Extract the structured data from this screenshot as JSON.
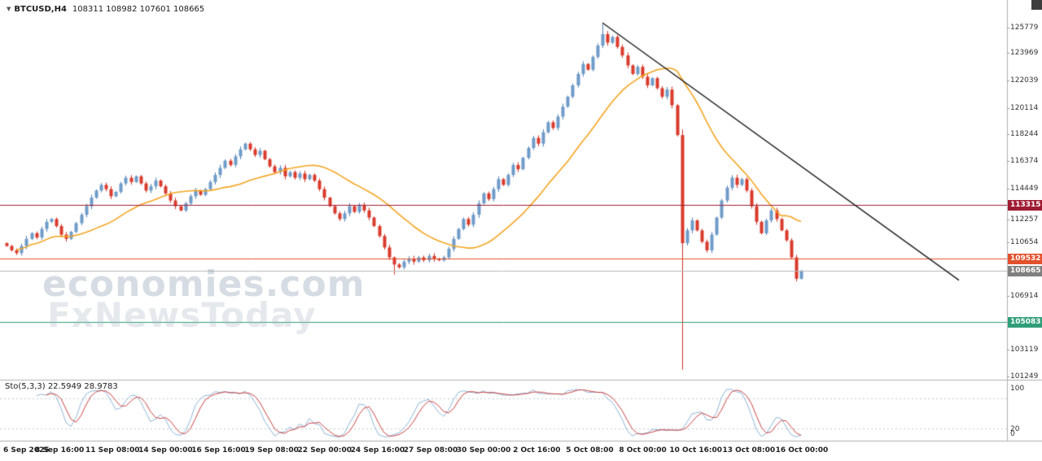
{
  "header": {
    "symbol": "BTCUSD,H4",
    "ohlc": "108311 108982 107601 108665"
  },
  "watermark": {
    "line1": "economies.com",
    "line2": "FxNewsToday"
  },
  "stochastic": {
    "label": "Sto(5,3,3) 22.5949 28.9783",
    "k_value": 22.5949,
    "d_value": 28.9783,
    "levels": [
      100,
      20,
      0
    ],
    "dotted_levels": [
      80,
      20
    ],
    "k_color": "#8fb6d8",
    "d_color": "#cc4444"
  },
  "price_axis": {
    "ticks": [
      125779,
      123969,
      122039,
      120114,
      118244,
      116374,
      114449,
      112257,
      110654,
      106914,
      103119,
      101249
    ],
    "badges": [
      {
        "price": 113315,
        "label": "113315",
        "color": "#9e1b32"
      },
      {
        "price": 109532,
        "label": "109532",
        "color": "#e2502c"
      },
      {
        "price": 108665,
        "label": "108665",
        "color": "#808080"
      },
      {
        "price": 105083,
        "label": "105083",
        "color": "#2f9e78"
      }
    ]
  },
  "time_axis": {
    "labels": [
      "6 Sep 2025",
      "8 Sep 16:00",
      "11 Sep 08:00",
      "14 Sep 00:00",
      "16 Sep 16:00",
      "19 Sep 08:00",
      "22 Sep 00:00",
      "24 Sep 16:00",
      "27 Sep 08:00",
      "30 Sep 00:00",
      "2 Oct 16:00",
      "5 Oct 08:00",
      "8 Oct 00:00",
      "10 Oct 16:00",
      "13 Oct 08:00",
      "16 Oct 00:00"
    ]
  },
  "chart_data": {
    "type": "candlestick",
    "symbol": "BTCUSD",
    "timeframe": "H4",
    "title": "BTCUSD,H4",
    "current_bar": {
      "open": 108311,
      "high": 108982,
      "low": 107601,
      "close": 108665
    },
    "x_start": "6 Sep 2025",
    "x_end": "16 Oct 2025 00:00",
    "ylim": [
      101000,
      127700
    ],
    "grid": false,
    "first_open": 110600,
    "open_rule": "previous_close",
    "wick_formula": "60+((i*37)%160)",
    "candles_close": [
      110400,
      110100,
      109900,
      110400,
      110900,
      111300,
      111000,
      111600,
      112100,
      112300,
      111800,
      111200,
      110900,
      111400,
      112000,
      112600,
      113200,
      113800,
      114300,
      114700,
      114400,
      113900,
      114200,
      114800,
      115200,
      114900,
      115300,
      114800,
      114300,
      114600,
      115000,
      114600,
      114100,
      113600,
      113200,
      112900,
      113400,
      113900,
      114300,
      114000,
      114400,
      114900,
      115400,
      115900,
      116400,
      116100,
      116700,
      117200,
      117600,
      117200,
      116800,
      117100,
      116500,
      116000,
      115600,
      115900,
      115300,
      115600,
      115200,
      115500,
      115100,
      115400,
      115000,
      114400,
      113800,
      113200,
      112700,
      112300,
      112700,
      113200,
      112800,
      113300,
      112900,
      112400,
      111800,
      111100,
      110300,
      109600,
      109100,
      108900,
      109300,
      109500,
      109300,
      109600,
      109400,
      109700,
      109500,
      109400,
      109600,
      110200,
      110900,
      111600,
      112300,
      111900,
      112600,
      113400,
      114100,
      113700,
      114400,
      115100,
      114700,
      115400,
      116100,
      115800,
      116600,
      117300,
      118000,
      117600,
      118400,
      119100,
      118700,
      119500,
      120200,
      120900,
      121700,
      122500,
      123200,
      122800,
      123700,
      124500,
      125300,
      124700,
      125100,
      124400,
      123800,
      123100,
      122500,
      123000,
      122300,
      121700,
      122200,
      121500,
      120900,
      121400,
      120300,
      118200,
      110600,
      111500,
      112200,
      111500,
      110700,
      110100,
      111200,
      112400,
      113600,
      114500,
      115200,
      114700,
      115100,
      114300,
      113200,
      112100,
      111300,
      112200,
      112900,
      112300,
      111500,
      110800,
      109600,
      108100,
      108665
    ],
    "special_candles": [
      {
        "index": 78,
        "low": 108400
      },
      {
        "index": 120,
        "high": 126000
      },
      {
        "index": 136,
        "open": 118200,
        "high": 118600,
        "low": 101700,
        "close": 110600
      }
    ],
    "ma": {
      "type": "SMA",
      "period": 21,
      "color": "#f5a623"
    },
    "trendline": {
      "from_index": 120,
      "from_price": 126100,
      "to_index": 191.8,
      "to_price": 108000,
      "color": "#1a1a1a"
    },
    "hlines": [
      {
        "price": 113315,
        "color": "#a02038"
      },
      {
        "price": 109532,
        "color": "#e2502c"
      },
      {
        "price": 105083,
        "color": "#2f9e78"
      }
    ],
    "current_price_line": {
      "price": 108665,
      "color": "#b8b8b8"
    },
    "up_color": "#3e6da3",
    "up_fill": "#6f9cc9",
    "up_wick": "#4f7fb5",
    "down_color": "#a8281c",
    "down_fill": "#da3b2c",
    "down_wick": "#cf3526"
  }
}
